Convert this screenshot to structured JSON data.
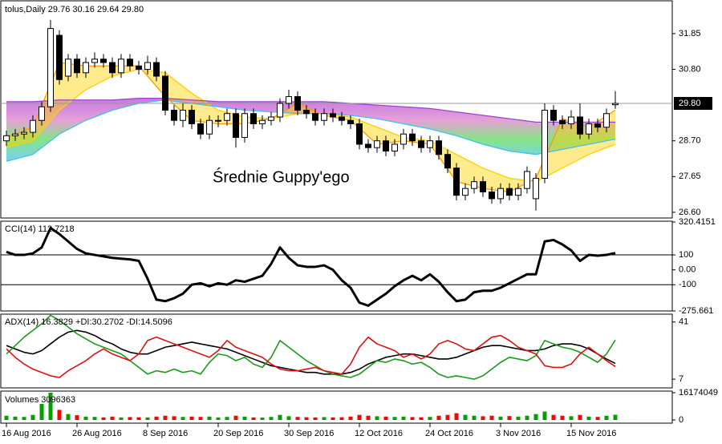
{
  "chart_data": [
    {
      "type": "candlestick",
      "title": "tolus,Daily  29.76 30.16 29.64 29.80",
      "annotation": "Średnie Guppy'ego",
      "open": [
        28.7,
        28.85,
        28.9,
        28.95,
        29.3,
        29.7,
        31.8,
        30.6,
        31.1,
        30.7,
        31.0,
        31.1,
        31.0,
        30.7,
        31.1,
        30.9,
        30.8,
        31.0,
        30.6,
        29.6,
        29.3,
        29.6,
        29.2,
        28.9,
        29.3,
        29.3,
        29.5,
        28.8,
        29.5,
        29.2,
        29.3,
        29.4,
        29.8,
        30.0,
        29.6,
        29.5,
        29.3,
        29.5,
        29.4,
        29.3,
        29.2,
        28.6,
        28.5,
        28.7,
        28.4,
        28.6,
        28.9,
        28.7,
        28.5,
        28.7,
        28.3,
        27.9,
        27.1,
        27.3,
        27.5,
        27.2,
        27.0,
        27.3,
        27.1,
        27.3,
        27.0,
        27.6,
        29.6,
        29.3,
        29.2,
        29.4,
        28.9,
        29.2,
        29.1,
        29.76
      ],
      "high": [
        29.0,
        29.05,
        29.1,
        29.45,
        29.85,
        32.25,
        31.95,
        31.25,
        31.25,
        31.15,
        31.3,
        31.25,
        31.15,
        31.25,
        31.25,
        31.05,
        31.2,
        31.15,
        30.75,
        29.75,
        29.8,
        29.75,
        29.35,
        29.45,
        29.45,
        29.65,
        29.65,
        29.65,
        29.65,
        29.45,
        29.55,
        29.95,
        30.2,
        30.15,
        29.75,
        29.65,
        29.65,
        29.65,
        29.55,
        29.45,
        29.35,
        28.75,
        28.85,
        28.85,
        28.75,
        29.05,
        29.05,
        28.85,
        28.85,
        28.85,
        28.45,
        28.05,
        27.45,
        27.65,
        27.65,
        27.35,
        27.45,
        27.45,
        27.45,
        27.95,
        27.75,
        29.8,
        29.75,
        29.45,
        29.6,
        29.8,
        29.35,
        29.35,
        29.65,
        30.16
      ],
      "low": [
        28.55,
        28.7,
        28.75,
        28.8,
        29.15,
        29.55,
        30.35,
        30.45,
        30.55,
        30.55,
        30.85,
        30.85,
        30.55,
        30.55,
        30.75,
        30.65,
        30.65,
        30.45,
        29.45,
        29.15,
        29.1,
        29.05,
        28.75,
        28.75,
        29.1,
        29.15,
        28.5,
        28.65,
        29.05,
        29.05,
        29.15,
        29.25,
        29.65,
        29.45,
        29.35,
        29.15,
        29.15,
        29.25,
        29.15,
        29.05,
        28.45,
        28.35,
        28.35,
        28.25,
        28.25,
        28.45,
        28.55,
        28.35,
        28.35,
        28.15,
        27.75,
        26.95,
        26.95,
        27.15,
        27.05,
        26.85,
        26.85,
        26.95,
        26.95,
        27.15,
        26.65,
        27.45,
        29.15,
        29.05,
        29.05,
        28.75,
        28.75,
        28.95,
        28.95,
        29.64
      ],
      "close": [
        28.85,
        28.9,
        28.95,
        29.3,
        29.7,
        32.0,
        30.5,
        31.1,
        30.7,
        31.0,
        31.1,
        31.0,
        30.7,
        31.1,
        30.9,
        30.8,
        31.0,
        30.6,
        29.6,
        29.3,
        29.6,
        29.2,
        28.9,
        29.3,
        29.3,
        29.5,
        28.8,
        29.5,
        29.2,
        29.3,
        29.4,
        29.8,
        30.0,
        29.6,
        29.5,
        29.3,
        29.5,
        29.4,
        29.3,
        29.2,
        28.6,
        28.5,
        28.7,
        28.4,
        28.6,
        28.9,
        28.7,
        28.5,
        28.7,
        28.3,
        27.9,
        27.1,
        27.3,
        27.5,
        27.2,
        27.0,
        27.3,
        27.1,
        27.3,
        27.8,
        27.6,
        29.6,
        29.3,
        29.2,
        29.4,
        28.9,
        29.2,
        29.1,
        29.5,
        29.8
      ],
      "up_color": "#ffffff",
      "down_color": "#000000",
      "ma": [
        {
          "color": "#ff9900",
          "x": [
            0,
            3,
            6,
            9,
            12,
            15,
            18,
            21,
            24,
            27,
            30,
            33,
            36,
            39,
            42,
            45,
            48,
            51,
            54,
            57,
            60,
            63,
            66,
            69
          ],
          "values": [
            28.8,
            29.1,
            31.0,
            30.9,
            30.9,
            30.9,
            30.0,
            29.3,
            29.2,
            29.2,
            29.35,
            29.8,
            29.45,
            29.3,
            28.6,
            28.7,
            28.6,
            27.5,
            27.3,
            27.2,
            27.6,
            29.35,
            29.1,
            29.6
          ]
        },
        {
          "color": "#ffd000",
          "x": [
            0,
            3,
            6,
            9,
            12,
            15,
            18,
            21,
            24,
            27,
            30,
            33,
            36,
            39,
            42,
            45,
            48,
            51,
            54,
            57,
            60,
            63,
            66,
            69
          ],
          "values": [
            28.5,
            28.7,
            29.6,
            30.2,
            30.6,
            30.8,
            30.7,
            30.1,
            29.6,
            29.4,
            29.35,
            29.5,
            29.5,
            29.4,
            29.1,
            28.8,
            28.7,
            28.3,
            27.9,
            27.6,
            27.5,
            27.9,
            28.3,
            28.6
          ]
        },
        {
          "color": "#40c0f0",
          "x": [
            0,
            3,
            6,
            9,
            12,
            15,
            18,
            21,
            24,
            27,
            30,
            33,
            36,
            39,
            42,
            45,
            48,
            51,
            54,
            57,
            60,
            63,
            66,
            69
          ],
          "values": [
            28.1,
            28.3,
            28.9,
            29.3,
            29.6,
            29.8,
            29.9,
            29.8,
            29.7,
            29.6,
            29.55,
            29.5,
            29.5,
            29.45,
            29.35,
            29.2,
            29.05,
            28.85,
            28.6,
            28.4,
            28.3,
            28.45,
            28.6,
            28.75
          ]
        },
        {
          "color": "#a040d0",
          "x": [
            0,
            3,
            6,
            9,
            12,
            15,
            18,
            21,
            24,
            27,
            30,
            33,
            36,
            39,
            42,
            45,
            48,
            51,
            54,
            57,
            60,
            63,
            66,
            69
          ],
          "values": [
            29.85,
            29.85,
            29.9,
            29.9,
            29.9,
            29.95,
            29.95,
            29.9,
            29.85,
            29.85,
            29.85,
            29.85,
            29.85,
            29.8,
            29.75,
            29.7,
            29.65,
            29.55,
            29.45,
            29.35,
            29.25,
            29.25,
            29.25,
            29.25
          ]
        }
      ],
      "price_label": {
        "value": 29.8,
        "label": "29.80"
      },
      "ylim": [
        26.48,
        32.79
      ],
      "yticks": [
        31.85,
        {
          "value": 30.8,
          "label": "30.80"
        },
        {
          "value": 28.7,
          "label": "28.70"
        },
        27.65,
        {
          "value": 26.6,
          "label": "26.60"
        }
      ]
    },
    {
      "type": "line",
      "title": "CCI(14) 112.7218",
      "series": [
        {
          "color": "#000000",
          "values": [
            120,
            100,
            100,
            110,
            150,
            280,
            240,
            190,
            140,
            110,
            100,
            90,
            80,
            75,
            70,
            60,
            -60,
            -200,
            -210,
            -190,
            -160,
            -100,
            -90,
            -110,
            -90,
            -100,
            -70,
            -80,
            -60,
            -40,
            40,
            150,
            80,
            30,
            20,
            20,
            30,
            0,
            -70,
            -120,
            -220,
            -240,
            -200,
            -160,
            -110,
            -70,
            -40,
            -70,
            -30,
            -80,
            -150,
            -210,
            -200,
            -150,
            -140,
            -140,
            -120,
            -90,
            -60,
            -30,
            -30,
            190,
            200,
            170,
            130,
            60,
            100,
            95,
            100,
            112.7218
          ]
        }
      ],
      "levels": [
        100,
        -100
      ],
      "ylim": [
        -275.661,
        320.4151
      ],
      "yticks": [
        320.4151,
        100,
        {
          "value": 0,
          "label": "0.00"
        },
        -100,
        -275.661
      ]
    },
    {
      "type": "line",
      "title": "ADX(14) 16.3829 +DI:30.2702 -DI:14.5096",
      "series": [
        {
          "color": "#000000",
          "values": [
            27,
            25,
            23,
            22,
            24,
            28,
            32,
            35,
            36,
            35,
            33,
            30,
            28,
            25,
            23,
            22,
            22,
            24,
            26,
            27,
            28,
            29,
            28,
            27,
            26,
            25,
            23,
            21,
            19,
            17,
            15,
            14,
            13,
            12,
            11,
            11,
            10,
            10,
            10,
            11,
            13,
            16,
            18,
            20,
            21,
            22,
            22,
            21,
            20,
            19,
            19,
            20,
            22,
            24,
            26,
            27,
            27,
            26,
            25,
            24,
            24,
            25,
            27,
            28,
            28,
            27,
            25,
            22,
            19,
            16.3829
          ]
        },
        {
          "color": "#1a9a1a",
          "values": [
            22,
            27,
            32,
            36,
            40,
            45,
            42,
            38,
            34,
            31,
            28,
            26,
            24,
            22,
            18,
            14,
            10,
            12,
            11,
            13,
            11,
            12,
            10,
            17,
            22,
            21,
            18,
            20,
            16,
            14,
            20,
            30,
            26,
            22,
            18,
            15,
            12,
            10,
            9,
            8,
            10,
            14,
            18,
            17,
            19,
            18,
            16,
            17,
            14,
            10,
            8,
            9,
            8,
            7,
            9,
            13,
            17,
            20,
            19,
            18,
            21,
            30,
            28,
            26,
            25,
            23,
            20,
            17,
            22,
            30.2702
          ]
        },
        {
          "color": "#e01010",
          "values": [
            25,
            20,
            16,
            13,
            11,
            9,
            8,
            12,
            15,
            18,
            22,
            25,
            22,
            20,
            18,
            22,
            30,
            32,
            30,
            28,
            26,
            24,
            22,
            20,
            24,
            30,
            26,
            24,
            22,
            20,
            16,
            13,
            12,
            12,
            13,
            14,
            12,
            11,
            10,
            16,
            26,
            32,
            28,
            26,
            24,
            20,
            22,
            19,
            22,
            28,
            30,
            28,
            25,
            24,
            28,
            32,
            33,
            30,
            26,
            24,
            22,
            15,
            14,
            14,
            16,
            22,
            26,
            22,
            18,
            14.5096
          ]
        }
      ],
      "ylim": [
        1.8,
        45.2
      ],
      "yticks": [
        41,
        7
      ]
    },
    {
      "type": "bar",
      "title": "Volumes 3096363",
      "categories": [
        "16 Aug 2016",
        null,
        null,
        null,
        null,
        null,
        null,
        null,
        "26 Aug 2016",
        null,
        null,
        null,
        null,
        null,
        null,
        null,
        "8 Sep 2016",
        null,
        null,
        null,
        null,
        null,
        null,
        null,
        "20 Sep 2016",
        null,
        null,
        null,
        null,
        null,
        null,
        null,
        "30 Sep 2016",
        null,
        null,
        null,
        null,
        null,
        null,
        null,
        "12 Oct 2016",
        null,
        null,
        null,
        null,
        null,
        null,
        null,
        "24 Oct 2016",
        null,
        null,
        null,
        null,
        null,
        null,
        null,
        "3 Nov 2016",
        null,
        null,
        null,
        null,
        null,
        null,
        null,
        "15 Nov 2016",
        null,
        null,
        null,
        null,
        null
      ],
      "values": [
        2500000,
        2000000,
        1800000,
        3000000,
        9500000,
        16174049,
        6000000,
        3500000,
        2800000,
        2000000,
        1800000,
        1500000,
        2000000,
        1500000,
        1700000,
        1600000,
        1500000,
        2000000,
        2500000,
        2200000,
        1800000,
        2000000,
        1800000,
        2000000,
        1500000,
        1800000,
        2500000,
        2000000,
        1500000,
        1400000,
        1800000,
        3000000,
        2200000,
        1800000,
        1600000,
        1500000,
        1700000,
        1500000,
        1600000,
        2000000,
        3000000,
        2500000,
        2200000,
        2000000,
        1800000,
        2000000,
        1700000,
        1600000,
        1800000,
        2500000,
        3000000,
        4000000,
        3000000,
        2500000,
        2200000,
        2500000,
        2000000,
        2300000,
        2000000,
        2500000,
        3500000,
        5000000,
        3000000,
        2500000,
        2200000,
        3000000,
        2000000,
        1800000,
        2500000,
        3096363
      ],
      "up_color": "#00a000",
      "down_color": "#ff0000",
      "ylim": [
        0,
        16174049
      ],
      "yticks": [
        16174049,
        0
      ]
    }
  ]
}
